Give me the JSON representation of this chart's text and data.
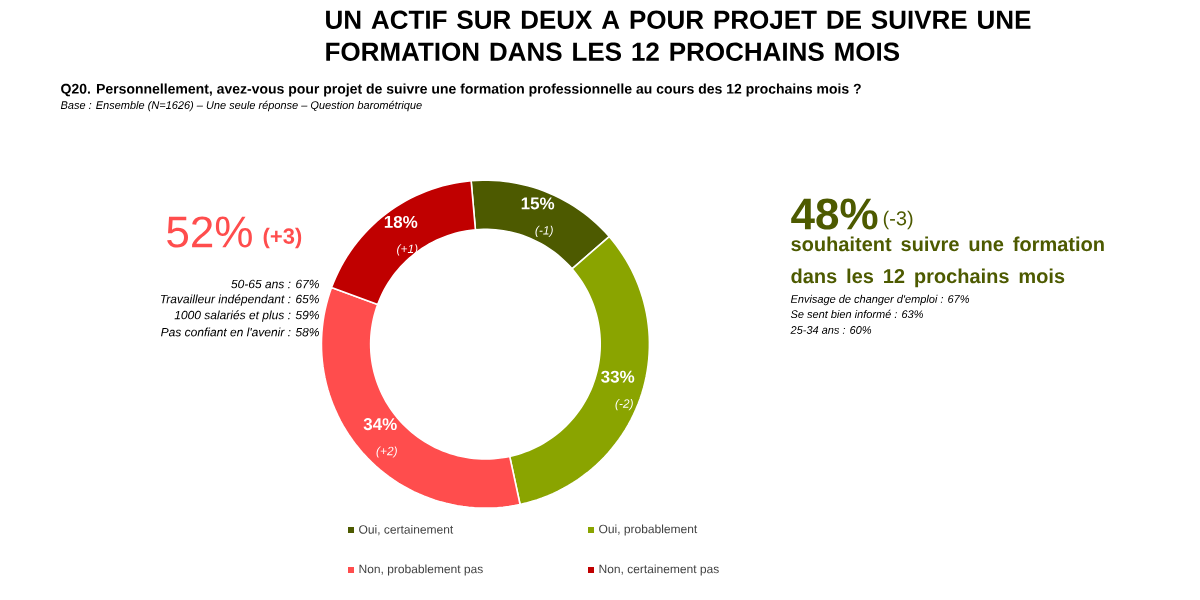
{
  "chart_data": {
    "type": "donut",
    "title": "UN ACTIF SUR DEUX A POUR PROJET DE SUIVRE UNE FORMATION DANS LES 12 PROCHAINS MOIS",
    "subtitle": "Q20. Personnellement, avez-vous pour projet de suivre une formation professionnelle au cours des 12 prochains mois ?",
    "categories": [
      "Oui, certainement",
      "Oui, probablement",
      "Non, probablement pas",
      "Non, certainement pas"
    ],
    "values": [
      15,
      33,
      34,
      18
    ],
    "colors": [
      "#4d5a00",
      "#8aa400",
      "#ff4d4d",
      "#c00000"
    ],
    "value_labels": [
      "15%",
      "33%",
      "34%",
      "18%"
    ],
    "legend": "bottom",
    "annotations": [
      "Base : Ensemble (N=1626) – Une seule réponse – Question barométrique",
      "52%",
      "(+3)",
      "50-65 ans : 67%",
      "Travailleur indépendant : 65%",
      "1000 salariés et plus : 59%",
      "Pas confiant en l'avenir : 58%",
      "48%",
      "(-3)",
      "souhaitent suivre une formation dans les 12 prochains mois",
      "Envisage de changer d'emploi : 67%",
      "Se sent bien informé : 63%",
      "25-34 ans : 60%",
      {
        "text": "(-1)",
        "x": "Oui, certainement"
      },
      {
        "text": "(-2)",
        "x": "Oui, probablement"
      },
      {
        "text": "(+2)",
        "x": "Non, probablement pas"
      },
      {
        "text": "(+1)",
        "x": "Non, certainement pas"
      }
    ]
  }
}
